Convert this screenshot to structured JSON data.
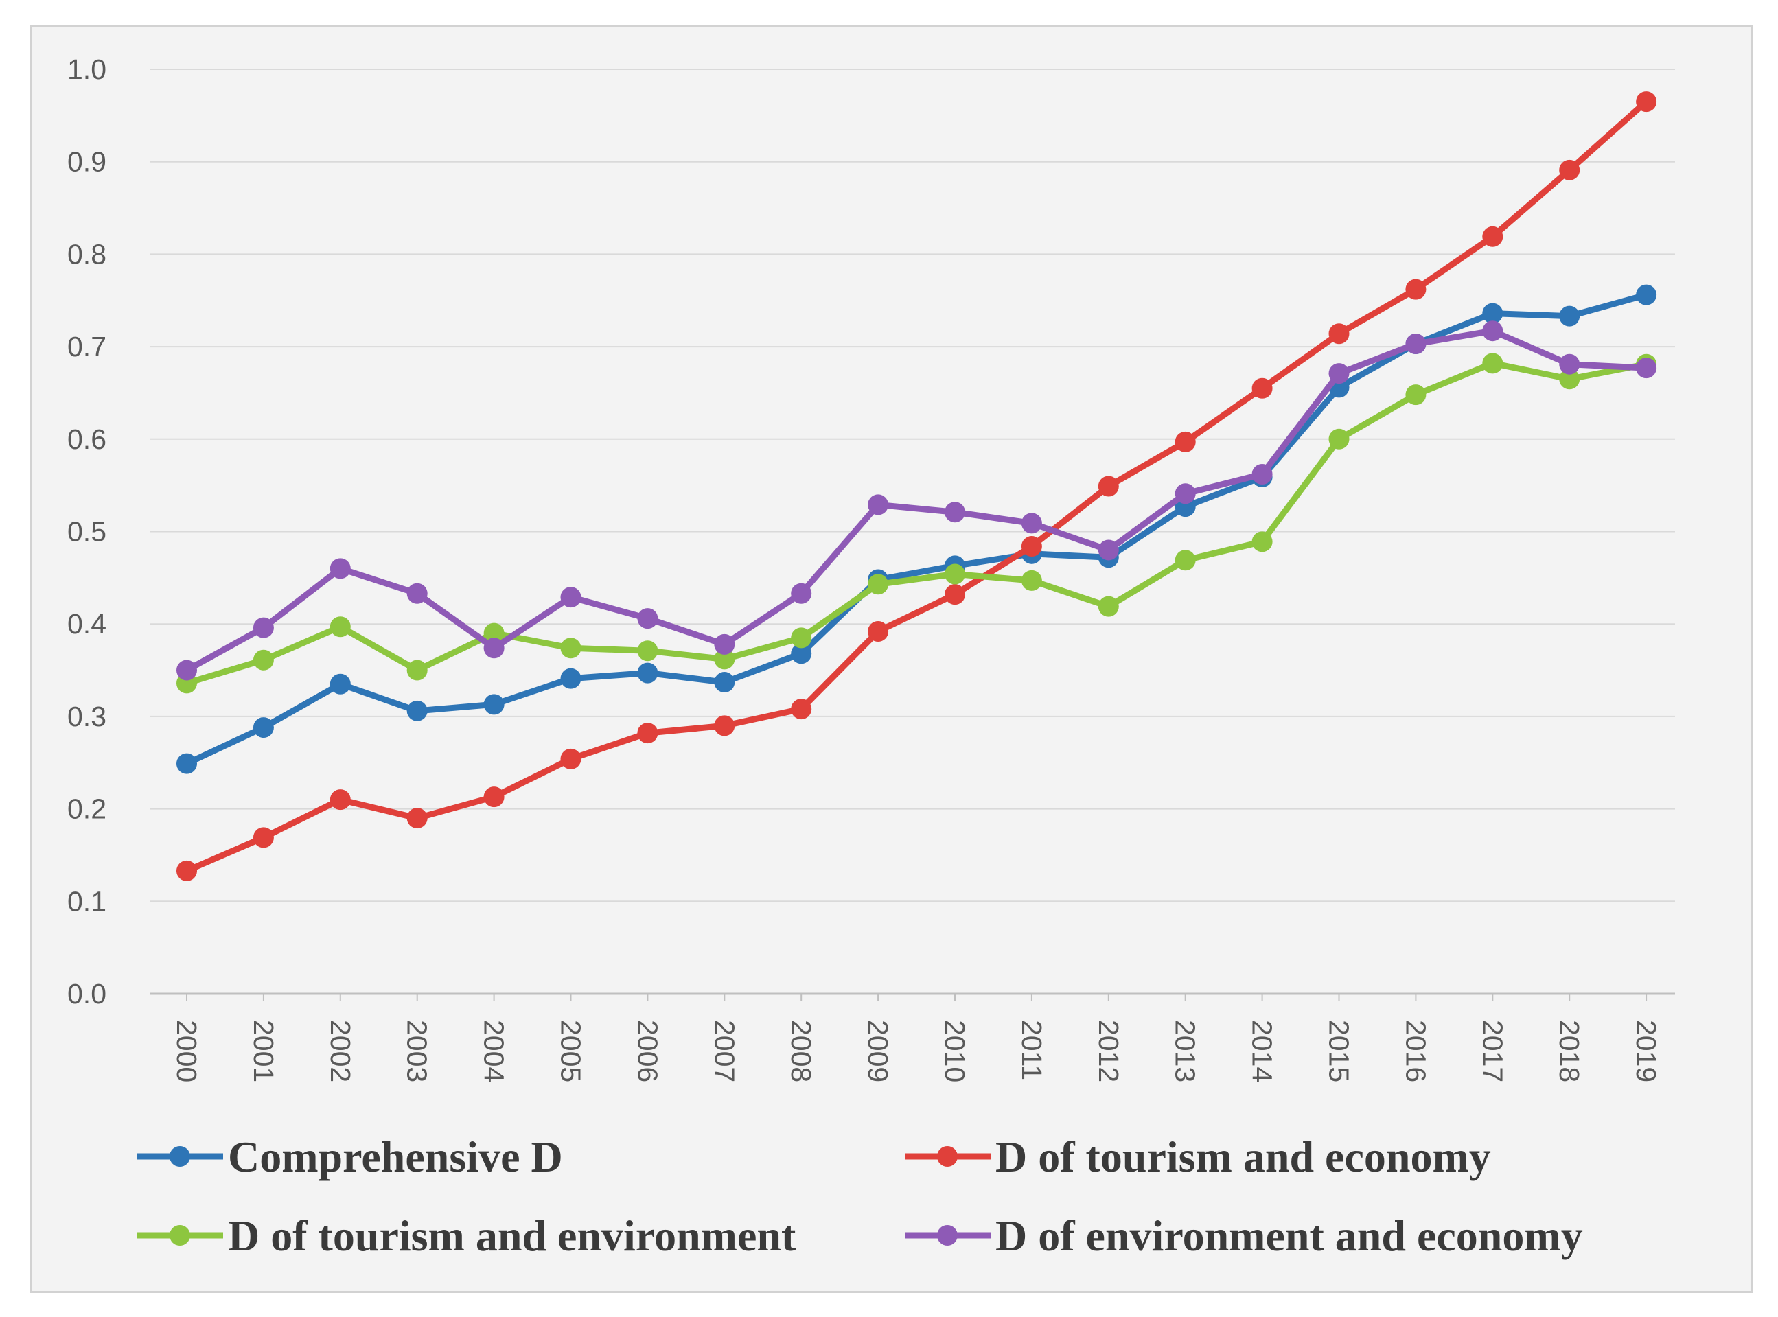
{
  "chart_data": {
    "type": "line",
    "title": "",
    "xlabel": "",
    "ylabel": "",
    "ylim": [
      0.0,
      1.0
    ],
    "y_ticks": [
      "0.0",
      "0.1",
      "0.2",
      "0.3",
      "0.4",
      "0.5",
      "0.6",
      "0.7",
      "0.8",
      "0.9",
      "1.0"
    ],
    "categories": [
      "2000",
      "2001",
      "2002",
      "2003",
      "2004",
      "2005",
      "2006",
      "2007",
      "2008",
      "2009",
      "2010",
      "2011",
      "2012",
      "2013",
      "2014",
      "2015",
      "2016",
      "2017",
      "2018",
      "2019"
    ],
    "grid": true,
    "legend_position": "bottom",
    "series": [
      {
        "name": "Comprehensive D",
        "color": "#2e75b6",
        "values": [
          0.249,
          0.288,
          0.335,
          0.306,
          0.313,
          0.341,
          0.347,
          0.337,
          0.368,
          0.448,
          0.463,
          0.476,
          0.472,
          0.527,
          0.559,
          0.656,
          0.703,
          0.736,
          0.733,
          0.756
        ]
      },
      {
        "name": "D of tourism and economy",
        "color": "#e0403a",
        "values": [
          0.133,
          0.169,
          0.21,
          0.19,
          0.213,
          0.254,
          0.282,
          0.29,
          0.308,
          0.392,
          0.432,
          0.484,
          0.549,
          0.597,
          0.655,
          0.714,
          0.762,
          0.819,
          0.891,
          0.965
        ]
      },
      {
        "name": "D of tourism and environment",
        "color": "#8dc63f",
        "values": [
          0.336,
          0.361,
          0.397,
          0.35,
          0.39,
          0.374,
          0.371,
          0.362,
          0.385,
          0.443,
          0.454,
          0.447,
          0.419,
          0.469,
          0.489,
          0.6,
          0.648,
          0.682,
          0.665,
          0.681
        ]
      },
      {
        "name": "D of environment and economy",
        "color": "#8e5ab6",
        "values": [
          0.35,
          0.396,
          0.46,
          0.433,
          0.374,
          0.429,
          0.406,
          0.378,
          0.433,
          0.529,
          0.521,
          0.509,
          0.48,
          0.541,
          0.562,
          0.671,
          0.703,
          0.717,
          0.681,
          0.677
        ]
      }
    ]
  }
}
